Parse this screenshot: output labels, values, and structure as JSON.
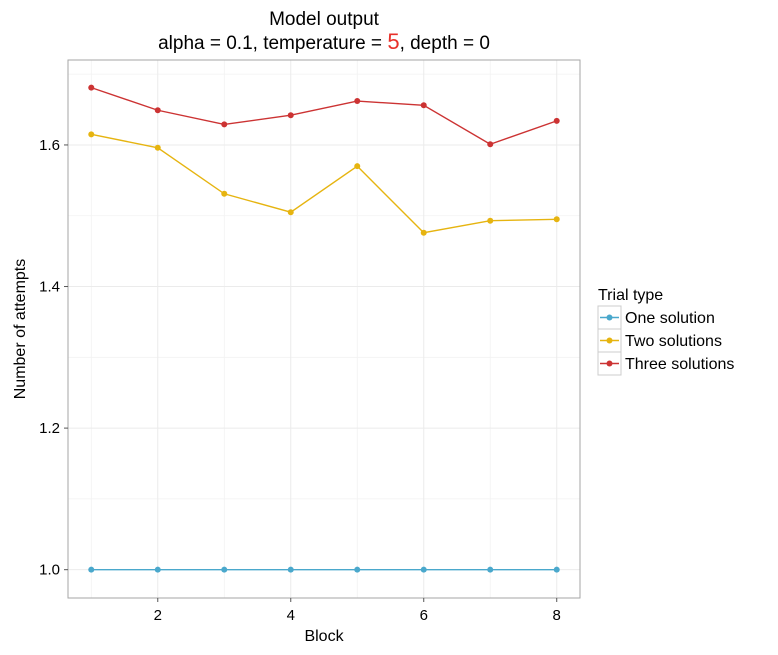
{
  "chart_data": {
    "type": "line",
    "title": "Model output",
    "subtitle": {
      "prefix": "alpha = 0.1, temperature = ",
      "highlight": "5",
      "suffix": ", depth = 0",
      "highlight_color": "#e8302a"
    },
    "xlabel": "Block",
    "ylabel": "Number of attempts",
    "x": [
      1,
      2,
      3,
      4,
      5,
      6,
      7,
      8
    ],
    "xlim": [
      0.65,
      8.35
    ],
    "ylim": [
      0.96,
      1.72
    ],
    "xticks": [
      2,
      4,
      6,
      8
    ],
    "yticks": [
      1.0,
      1.2,
      1.4,
      1.6
    ],
    "ytick_labels": [
      "1.0",
      "1.2",
      "1.4",
      "1.6"
    ],
    "grid": true,
    "legend": {
      "title": "Trial type",
      "position": "right"
    },
    "series": [
      {
        "name": "One solution",
        "color": "#4aa8cc",
        "values": [
          1.0,
          1.0,
          1.0,
          1.0,
          1.0,
          1.0,
          1.0,
          1.0
        ]
      },
      {
        "name": "Two solutions",
        "color": "#e6b410",
        "values": [
          1.615,
          1.596,
          1.531,
          1.505,
          1.57,
          1.476,
          1.493,
          1.495
        ]
      },
      {
        "name": "Three solutions",
        "color": "#cc3333",
        "values": [
          1.681,
          1.649,
          1.629,
          1.642,
          1.662,
          1.656,
          1.601,
          1.634
        ]
      }
    ]
  }
}
